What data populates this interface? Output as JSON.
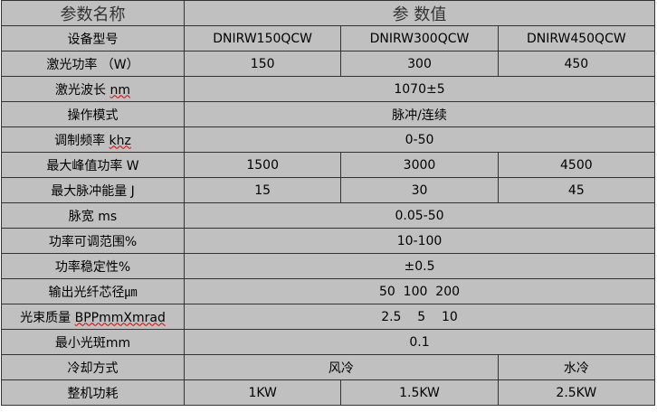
{
  "header": {
    "name": "参数名称",
    "value": "参 数值"
  },
  "rows": [
    {
      "label": "设备型号",
      "values": [
        "DNIRW150QCW",
        "DNIRW300QCW",
        "DNIRW450QCW"
      ]
    },
    {
      "label": "激光功率 （W）",
      "values": [
        "150",
        "300",
        "450"
      ]
    },
    {
      "label": "激光波长 ",
      "unit": "nm",
      "value": "1070±5"
    },
    {
      "label": "操作模式",
      "value": "脉冲/连续"
    },
    {
      "label": "调制频率 ",
      "unit": "khz",
      "value": "0-50"
    },
    {
      "label": "最大峰值功率 W",
      "values": [
        "1500",
        "3000",
        "4500"
      ]
    },
    {
      "label": "最大脉冲能量 J",
      "values": [
        "15",
        "30",
        "45"
      ]
    },
    {
      "label": "脉宽 ms",
      "value": "0.05-50"
    },
    {
      "label": "功率可调范围%",
      "value": "10-100"
    },
    {
      "label": "功率稳定性%",
      "value": "±0.5"
    },
    {
      "label": "输出光纤芯径㎛",
      "value": "50  100  200"
    },
    {
      "label": "光束质量 ",
      "unit": "BPPmmXmrad",
      "value": "2.5    5    10"
    },
    {
      "label": "最小光斑mm",
      "value": "0.1"
    },
    {
      "label": "冷却方式",
      "values": [
        "风冷",
        "水冷"
      ]
    },
    {
      "label": "整机功耗",
      "values": [
        "1KW",
        "1.5KW",
        "2.5KW"
      ]
    }
  ]
}
